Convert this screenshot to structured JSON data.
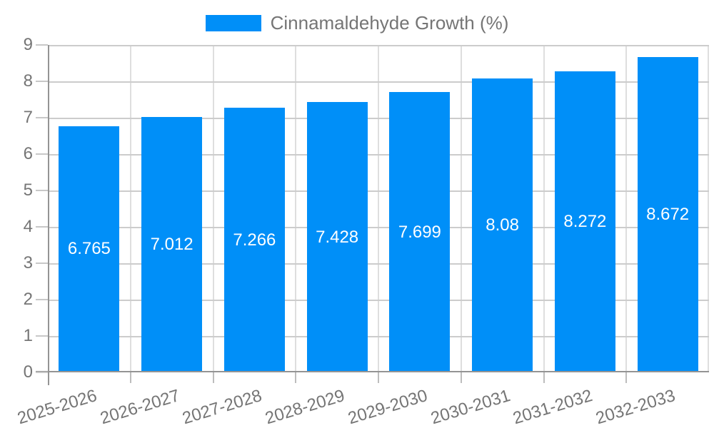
{
  "legend": {
    "label": "Cinnamaldehyde Growth (%)",
    "swatch_color": "#008ff8"
  },
  "chart_data": {
    "type": "bar",
    "title": "",
    "series_name": "Cinnamaldehyde Growth (%)",
    "categories": [
      "2025-2026",
      "2026-2027",
      "2027-2028",
      "2028-2029",
      "2029-2030",
      "2030-2031",
      "2031-2032",
      "2032-2033"
    ],
    "values": [
      6.765,
      7.012,
      7.266,
      7.428,
      7.699,
      8.08,
      8.272,
      8.672
    ],
    "value_labels": [
      "6.765",
      "7.012",
      "7.266",
      "7.428",
      "7.699",
      "8.08",
      "8.272",
      "8.672"
    ],
    "yticks": [
      0,
      1,
      2,
      3,
      4,
      5,
      6,
      7,
      8,
      9
    ],
    "ylim": [
      0,
      9
    ],
    "grid": true,
    "legend_position": "top",
    "bar_color": "#008ff8",
    "value_label_color": "#ffffff",
    "text_color": "#757575",
    "hgrid_color": "#cccccc",
    "vgrid_color": "#dedede",
    "axis_color": "#949494"
  }
}
